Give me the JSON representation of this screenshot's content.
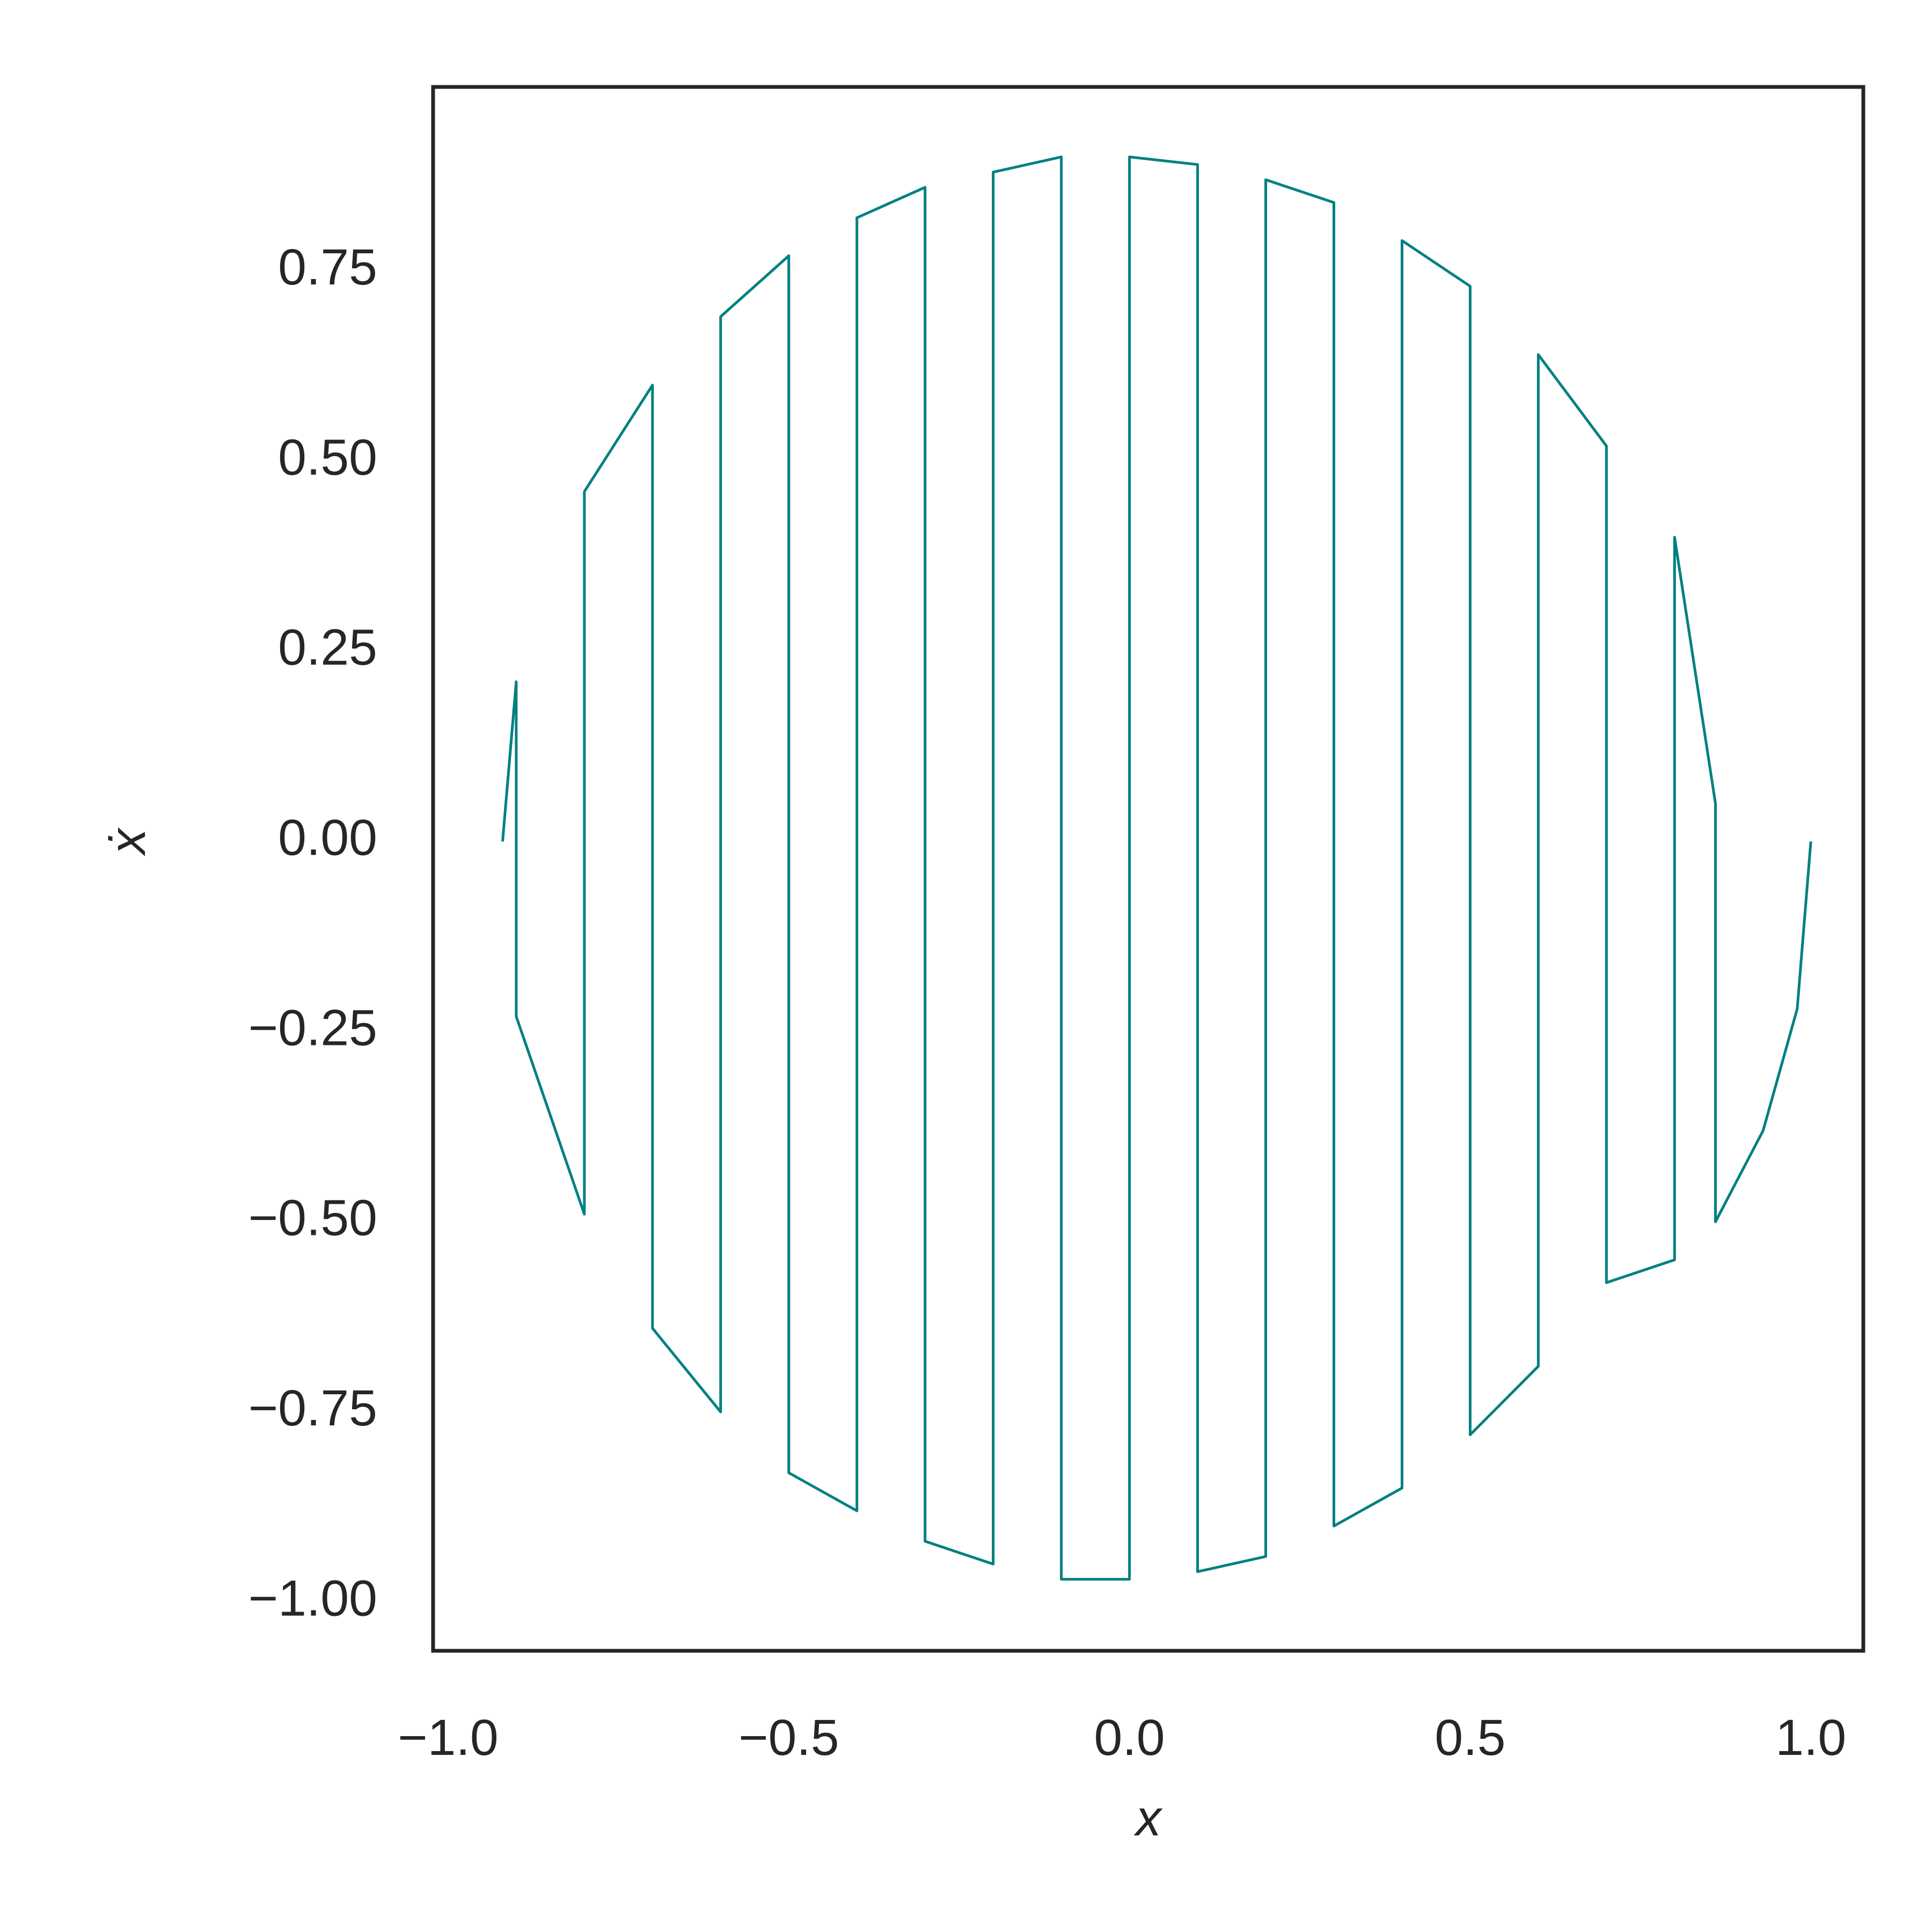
{
  "chart_data": {
    "type": "line",
    "x_label": "x",
    "y_label": "ẋ",
    "xlim": [
      -1.022,
      1.077
    ],
    "ylim": [
      -1.064,
      0.992
    ],
    "xticks": [
      {
        "value": -1.0,
        "label": "−1.0"
      },
      {
        "value": -0.5,
        "label": "−0.5"
      },
      {
        "value": 0.0,
        "label": "0.0"
      },
      0.5,
      {
        "value": 1.0,
        "label": "1.0"
      }
    ],
    "yticks": [
      {
        "value": -1.0,
        "label": "−1.00"
      },
      {
        "value": -0.75,
        "label": "−0.75"
      },
      {
        "value": -0.5,
        "label": "−0.50"
      },
      {
        "value": -0.25,
        "label": "−0.25"
      },
      {
        "value": 0.0,
        "label": "0.00"
      },
      {
        "value": 0.25,
        "label": "0.25"
      },
      {
        "value": 0.5,
        "label": "0.50"
      },
      0.75
    ],
    "grid": false,
    "series": [
      {
        "color": "#008080",
        "x": [
          1.0,
          0.98,
          0.93,
          0.86,
          0.86,
          0.8,
          0.8,
          0.7,
          0.7,
          0.6,
          0.6,
          0.5,
          0.5,
          0.4,
          0.4,
          0.3,
          0.3,
          0.2,
          0.2,
          0.1,
          0.1,
          0.0,
          0.0,
          -0.1,
          -0.1,
          -0.2,
          -0.2,
          -0.3,
          -0.3,
          -0.4,
          -0.4,
          -0.5,
          -0.5,
          -0.6,
          -0.6,
          -0.7,
          -0.7,
          -0.8,
          -0.8,
          -0.9,
          -0.9,
          -0.92
        ],
        "values": [
          0,
          -0.22,
          -0.38,
          -0.5,
          0.05,
          0.4,
          -0.55,
          -0.58,
          0.52,
          0.64,
          -0.69,
          -0.78,
          0.73,
          0.79,
          -0.85,
          -0.9,
          0.84,
          0.87,
          -0.94,
          -0.96,
          0.89,
          0.9,
          -0.97,
          -0.97,
          0.9,
          0.88,
          -0.95,
          -0.92,
          0.86,
          0.82,
          -0.88,
          -0.83,
          0.77,
          0.69,
          -0.75,
          -0.64,
          0.6,
          0.46,
          -0.49,
          -0.23,
          0.21,
          0
        ]
      }
    ]
  }
}
